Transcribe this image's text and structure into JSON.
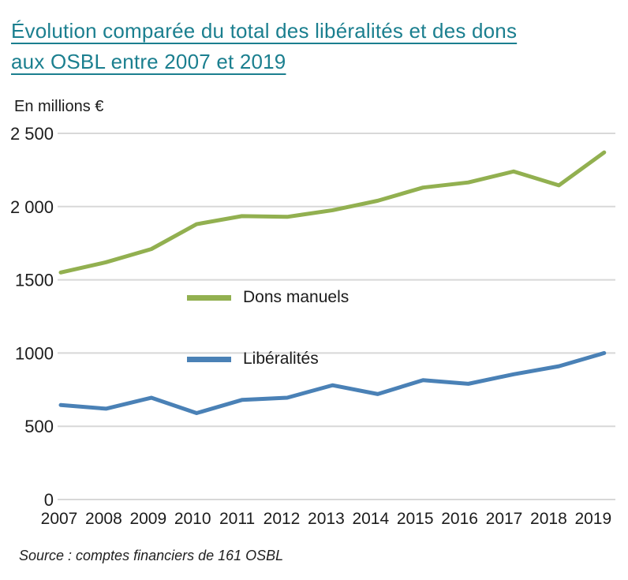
{
  "header": {
    "title_line1": "Évolution comparée du total des libéralités et des dons",
    "title_line2": "aux OSBL entre 2007 et 2019"
  },
  "chart_data": {
    "type": "line",
    "title": "Évolution comparée du total des libéralités et des dons aux OSBL entre 2007 et 2019",
    "unit_label": "En millions €",
    "source": "Source : comptes financiers de 161 OSBL",
    "x": [
      2007,
      2008,
      2009,
      2010,
      2011,
      2012,
      2013,
      2014,
      2015,
      2016,
      2017,
      2018,
      2019
    ],
    "series": [
      {
        "name": "Dons manuels",
        "color": "#92b050",
        "values": [
          1550,
          1620,
          1710,
          1880,
          1935,
          1930,
          1975,
          2040,
          2130,
          2165,
          2240,
          2145,
          2370
        ]
      },
      {
        "name": "Libéralités",
        "color": "#4a81b6",
        "values": [
          645,
          620,
          695,
          590,
          680,
          695,
          780,
          720,
          815,
          790,
          855,
          910,
          1000
        ]
      }
    ],
    "ylim": [
      0,
      2500
    ],
    "yticks": [
      0,
      500,
      1000,
      1500,
      2000,
      2500
    ],
    "ytick_labels": [
      "0",
      "500",
      "1000",
      "1500",
      "2 000",
      "2 500"
    ],
    "grid": true,
    "legend_position": "inside-center-left",
    "colors": {
      "grid": "#d8d8d8",
      "text": "#1c1c1c",
      "title": "#1b7f8f"
    }
  }
}
